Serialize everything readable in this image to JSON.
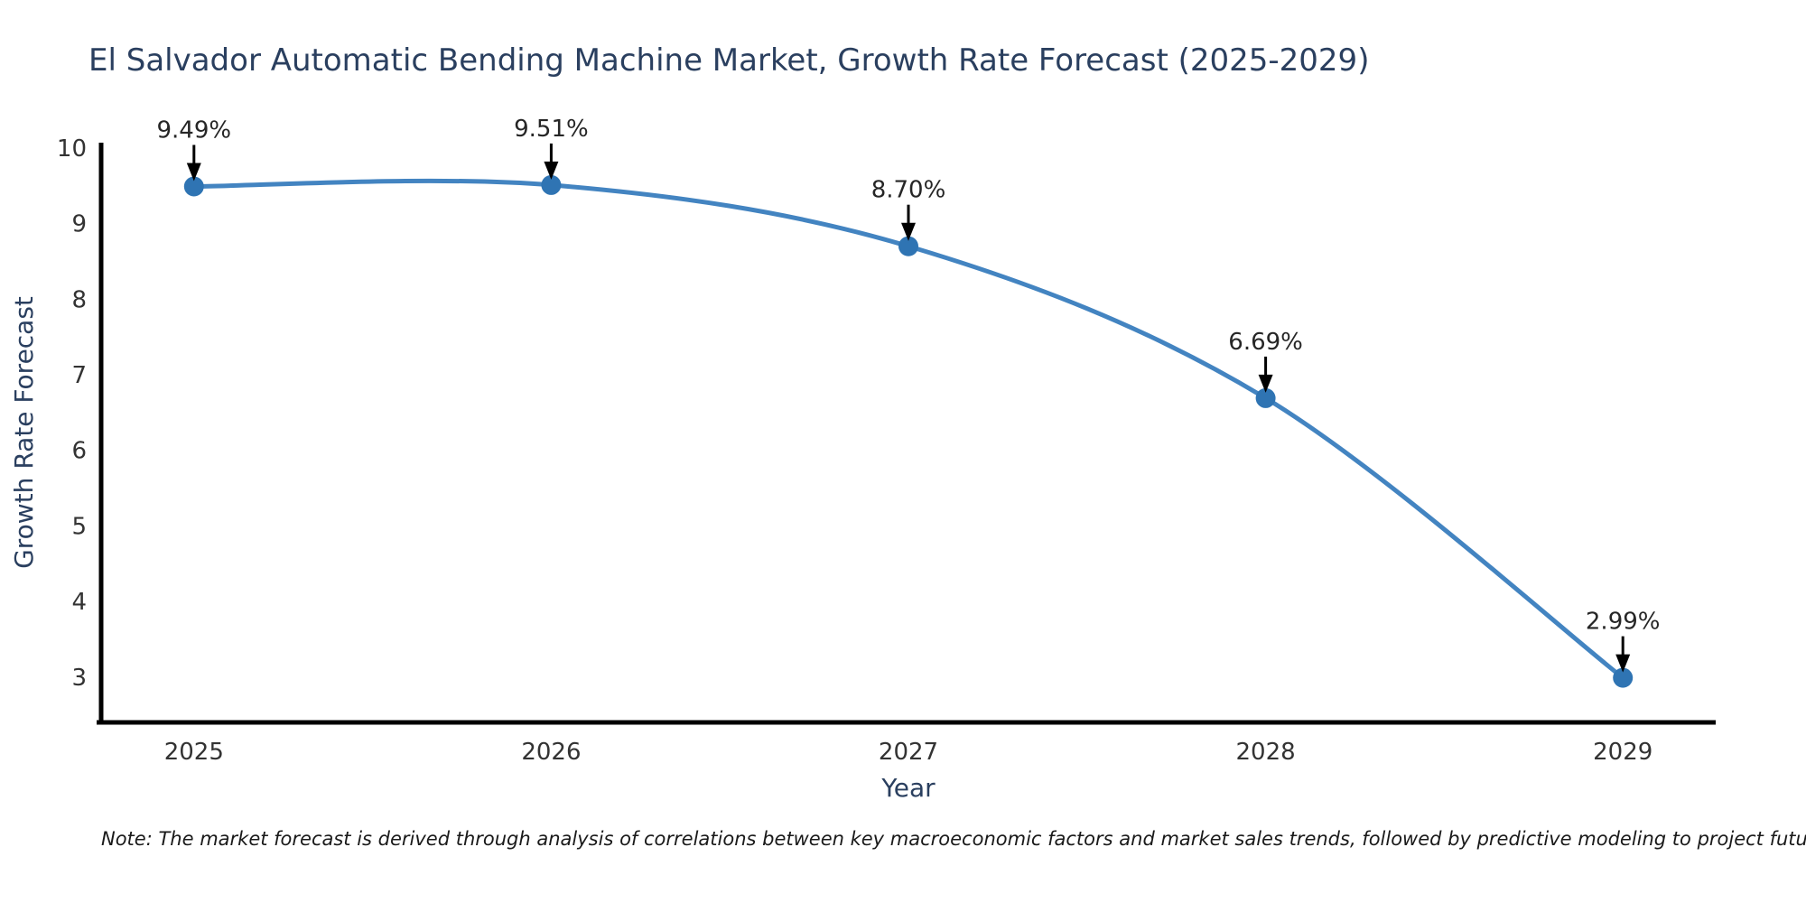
{
  "colors": {
    "title": "#2a3f5f",
    "tick": "#333333",
    "annotation": "#262626",
    "note": "#1a1a1a",
    "axis": "#000000",
    "line": "#4384c1",
    "marker": "#2f74b3",
    "background": "#ffffff"
  },
  "footnote": "Note: The market forecast is derived through analysis of correlations between key macroeconomic factors and market sales trends, followed by predictive modeling to project future sales",
  "chart_data": {
    "type": "line",
    "title": "El Salvador Automatic Bending Machine Market, Growth Rate Forecast (2025-2029)",
    "xlabel": "Year",
    "ylabel": "Growth Rate Forecast",
    "x": [
      2025,
      2026,
      2027,
      2028,
      2029
    ],
    "values": [
      9.49,
      9.51,
      8.7,
      6.69,
      2.99
    ],
    "point_labels": [
      "9.49%",
      "9.51%",
      "8.70%",
      "6.69%",
      "2.99%"
    ],
    "yticks": [
      10,
      9,
      8,
      7,
      6,
      5,
      4,
      3
    ],
    "xlim": [
      2024.74,
      2029.26
    ],
    "ylim": [
      2.4,
      10.07
    ],
    "grid": false,
    "legend": "none",
    "marker_style": "circle",
    "annotation_style": "value labels with downward black arrows to each point"
  }
}
